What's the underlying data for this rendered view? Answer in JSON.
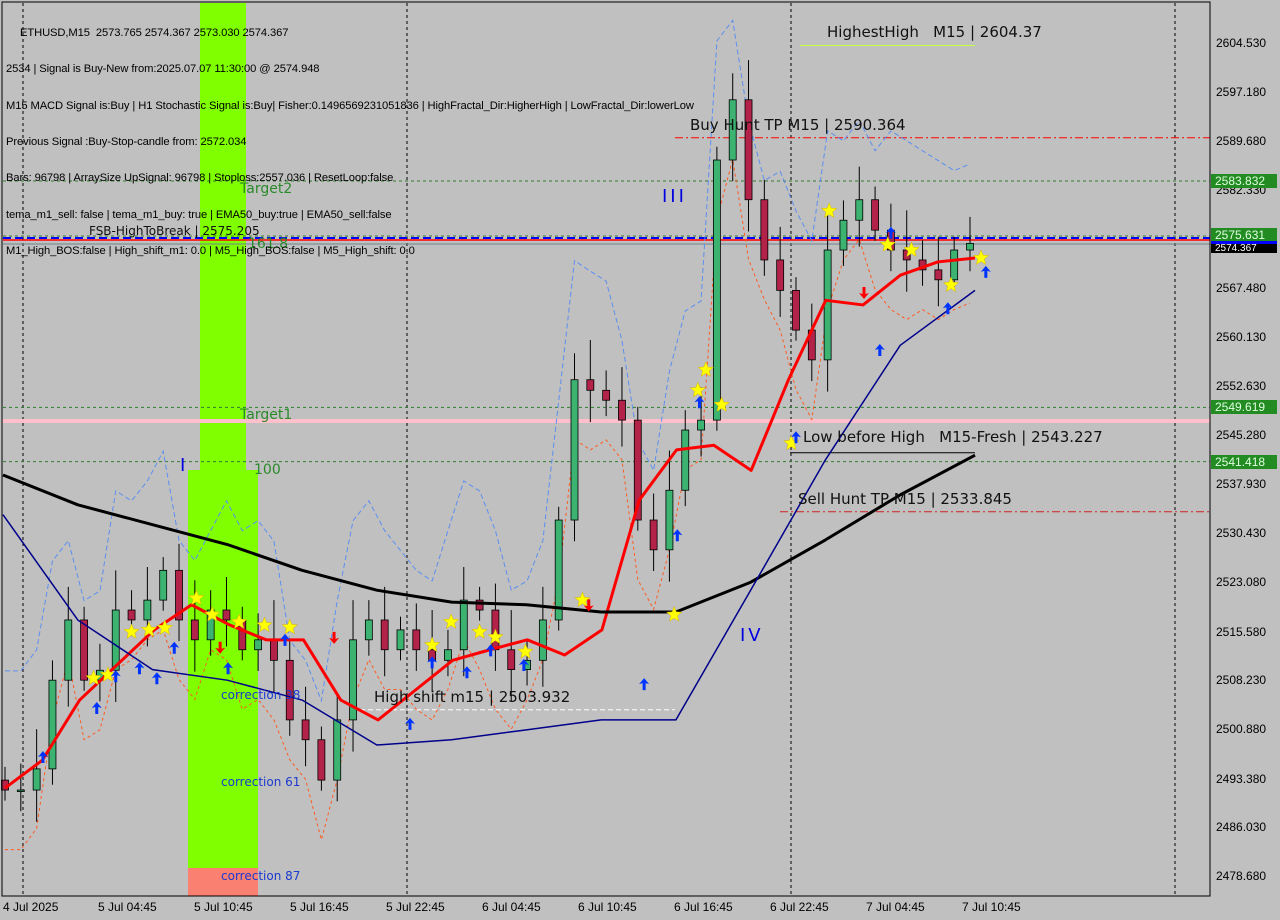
{
  "info_panel": {
    "symbol_line": "ETHUSD,M15  2573.765 2574.367 2573.030 2574.367",
    "lines": [
      "2534 | Signal is Buy-New from:2025.07.07 11:30:00 @ 2574.948",
      "M15 MACD Signal is:Buy | H1 Stochastic Signal is:Buy| Fisher:0.1496569231051836 | HighFractal_Dir:HigherHigh | LowFractal_Dir:lowerLow",
      "Previous Signal :Buy-Stop-candle from: 2572.034",
      "Bars: 96798 | ArraySize UpSignal: 96798 | Stoploss:2557.036 | ResetLoop:false",
      "tema_m1_sell: false | tema_m1_buy: true | EMA50_buy:true | EMA50_sell:false",
      "M1_High_BOS:false | High_shift_m1: 0.0 | M5_High_BOS:false | M5_High_shift: 0.0"
    ]
  },
  "chart_data": {
    "type": "candlestick",
    "symbol": "ETHUSD",
    "timeframe": "M15",
    "ylim": [
      2474.0,
      2609.0
    ],
    "y_ticks": [
      2604.53,
      2597.18,
      2589.68,
      2582.33,
      2567.48,
      2560.13,
      2552.63,
      2545.28,
      2537.93,
      2530.43,
      2523.08,
      2515.58,
      2508.23,
      2500.88,
      2493.38,
      2486.03,
      2478.68
    ],
    "x_ticks": [
      "4 Jul 2025",
      "5 Jul 04:45",
      "5 Jul 10:45",
      "5 Jul 16:45",
      "5 Jul 22:45",
      "6 Jul 04:45",
      "6 Jul 10:45",
      "6 Jul 16:45",
      "6 Jul 22:45",
      "7 Jul 04:45",
      "7 Jul 10:45"
    ],
    "closes": [
      2491.8,
      2491.8,
      2495.0,
      2508.4,
      2517.5,
      2508.4,
      2509.9,
      2519.0,
      2517.5,
      2520.5,
      2525.0,
      2517.5,
      2514.5,
      2519.0,
      2517.5,
      2513.0,
      2514.5,
      2511.4,
      2502.4,
      2499.4,
      2493.3,
      2502.4,
      2514.5,
      2517.5,
      2513.0,
      2516.0,
      2513.0,
      2511.4,
      2513.0,
      2520.5,
      2519.0,
      2513.0,
      2510.0,
      2511.4,
      2517.5,
      2532.6,
      2553.8,
      2552.2,
      2550.7,
      2547.7,
      2532.6,
      2528.1,
      2537.1,
      2546.2,
      2547.7,
      2587.0,
      2596.1,
      2581.0,
      2571.9,
      2567.3,
      2561.3,
      2556.8,
      2573.4,
      2577.9,
      2581.0,
      2576.4,
      2573.4,
      2571.9,
      2570.4,
      2568.9,
      2573.4,
      2574.4
    ],
    "series": [
      {
        "values": [
          2492.1,
          2496.3,
          2505.4,
          2510.7,
          2516.0,
          2519.8,
          2516.8,
          2514.5,
          2514.5,
          2505.4,
          2502.4,
          2506.9,
          2511.4,
          2513.0,
          2514.5,
          2512.2,
          2516.0,
          2535.6,
          2543.2,
          2543.9,
          2540.1,
          2553.8,
          2565.8,
          2565.1,
          2569.6,
          2571.6,
          2572.2
        ],
        "color": "#ff0000"
      },
      {
        "values": [
          2539.4,
          2534.9,
          2531.9,
          2528.9,
          2525.0,
          2522.0,
          2520.2,
          2519.8,
          2518.7,
          2518.7,
          2523.2,
          2529.6,
          2536.4,
          2542.4
        ],
        "color": "#000000"
      },
      {
        "values": [
          2533.4,
          2517.5,
          2510.0,
          2508.4,
          2505.4,
          2498.6,
          2499.4,
          2500.9,
          2502.4,
          2502.4,
          2522.0,
          2541.7,
          2559.0,
          2567.3
        ],
        "color": "#00008b"
      }
    ],
    "stars": [
      [
        5.6,
        2508.7
      ],
      [
        6.5,
        2509.2
      ],
      [
        8.0,
        2515.7
      ],
      [
        9.1,
        2516.0
      ],
      [
        10.1,
        2516.3
      ],
      [
        12.1,
        2520.8
      ],
      [
        13.1,
        2518.3
      ],
      [
        14.8,
        2517.2
      ],
      [
        16.4,
        2516.7
      ],
      [
        18.0,
        2516.4
      ],
      [
        27.0,
        2513.7
      ],
      [
        28.2,
        2517.2
      ],
      [
        30.0,
        2515.7
      ],
      [
        31.0,
        2514.9
      ],
      [
        32.9,
        2512.7
      ],
      [
        36.5,
        2520.5
      ],
      [
        42.3,
        2518.3
      ],
      [
        43.8,
        2552.2
      ],
      [
        44.3,
        2555.3
      ],
      [
        45.3,
        2550.0
      ],
      [
        49.7,
        2544.2
      ],
      [
        52.1,
        2579.3
      ],
      [
        55.8,
        2574.2
      ],
      [
        57.3,
        2573.4
      ],
      [
        59.8,
        2568.1
      ],
      [
        61.7,
        2572.2
      ]
    ],
    "buy_arrows": [
      [
        2.4,
        2496.8
      ],
      [
        5.8,
        2504.2
      ],
      [
        7.0,
        2509.0
      ],
      [
        8.5,
        2510.2
      ],
      [
        9.6,
        2508.7
      ],
      [
        10.7,
        2513.3
      ],
      [
        14.1,
        2510.2
      ],
      [
        17.7,
        2514.5
      ],
      [
        25.6,
        2501.8
      ],
      [
        27.0,
        2511.1
      ],
      [
        29.2,
        2509.6
      ],
      [
        30.7,
        2512.9
      ],
      [
        32.8,
        2510.7
      ],
      [
        40.4,
        2507.8
      ],
      [
        42.5,
        2530.3
      ],
      [
        43.9,
        2550.4
      ],
      [
        50.0,
        2545.1
      ],
      [
        55.3,
        2558.3
      ],
      [
        56.0,
        2576.0
      ],
      [
        59.6,
        2564.6
      ],
      [
        62.0,
        2570.1
      ]
    ],
    "sell_arrows": [
      [
        13.6,
        2513.3
      ],
      [
        20.8,
        2514.8
      ],
      [
        36.9,
        2519.7
      ],
      [
        54.3,
        2566.9
      ]
    ],
    "levels": {
      "highest_high": {
        "label": "HighestHigh   M15 | 2604.37",
        "price": 2604.37
      },
      "buy_hunt_tp": {
        "label": "Buy Hunt TP M15 | 2590.364",
        "price": 2590.364
      },
      "fsb_high": {
        "label": "FSB-HighToBreak | 2575.205",
        "price": 2575.205
      },
      "low_before_high": {
        "label": "Low before High   M15-Fresh | 2543.227",
        "price": 2543.227
      },
      "sell_hunt_tp": {
        "label": "Sell Hunt TP M15 | 2533.845",
        "price": 2533.845
      },
      "high_shift": {
        "label": "High shift m15 | 2503.932",
        "price": 2503.932
      },
      "target2": {
        "label": "Target2",
        "price": 2583.832
      },
      "fib_1618": {
        "label": "161.8",
        "price": 2575.631
      },
      "target1": {
        "label": "Target1",
        "price": 2549.619
      },
      "fib_100": {
        "label": "100",
        "price": 2541.418
      }
    },
    "corrections": [
      "correction 38",
      "correction 61",
      "correction 87"
    ],
    "waves": [
      "I",
      "III",
      "IV"
    ],
    "price_tags": [
      {
        "value": "2583.832",
        "price": 2583.832
      },
      {
        "value": "2575.631",
        "price": 2575.631
      },
      {
        "value": "2549.619",
        "price": 2549.619
      },
      {
        "value": "2541.418",
        "price": 2541.418
      }
    ],
    "current_price": {
      "value": "2574.367",
      "price": 2574.367
    },
    "colors": {
      "bull": "#3cb371",
      "bear": "#b22249",
      "zone": "#7fff00",
      "zone_low": "#fa8072",
      "target1": "#ffc0cb"
    }
  }
}
